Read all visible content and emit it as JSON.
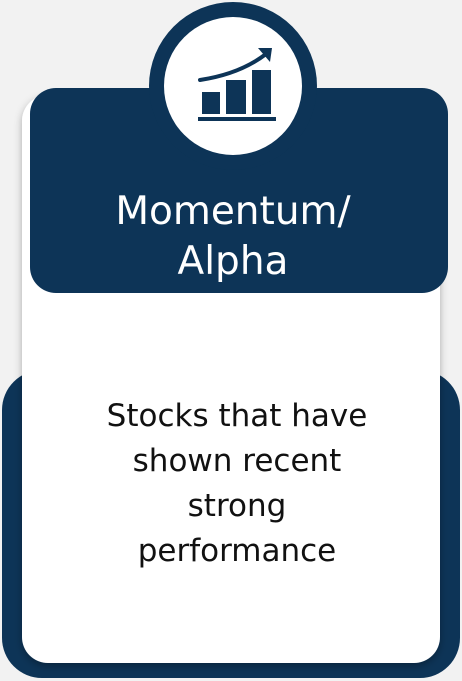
{
  "card": {
    "title_lines": [
      "Momentum/",
      "Alpha"
    ],
    "description_lines": [
      "Stocks that have",
      "shown recent",
      "strong",
      "performance"
    ]
  }
}
